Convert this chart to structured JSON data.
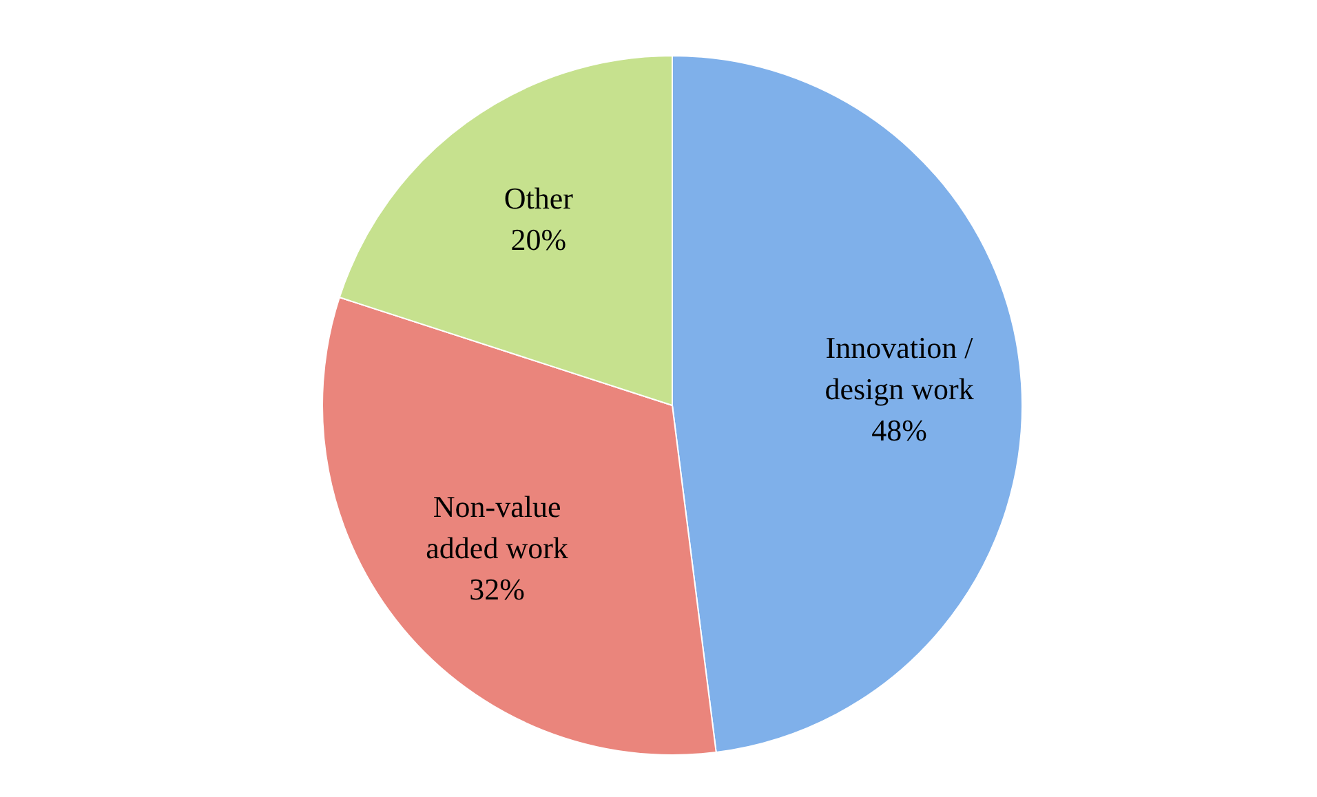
{
  "chart_data": {
    "type": "pie",
    "categories": [
      "Innovation / design work",
      "Non-value added work",
      "Other"
    ],
    "values": [
      48,
      32,
      20
    ],
    "colors": [
      "#7fb0ea",
      "#ea857c",
      "#c6e18e"
    ],
    "value_labels": [
      "48%",
      "32%",
      "20%"
    ],
    "legend": false
  }
}
